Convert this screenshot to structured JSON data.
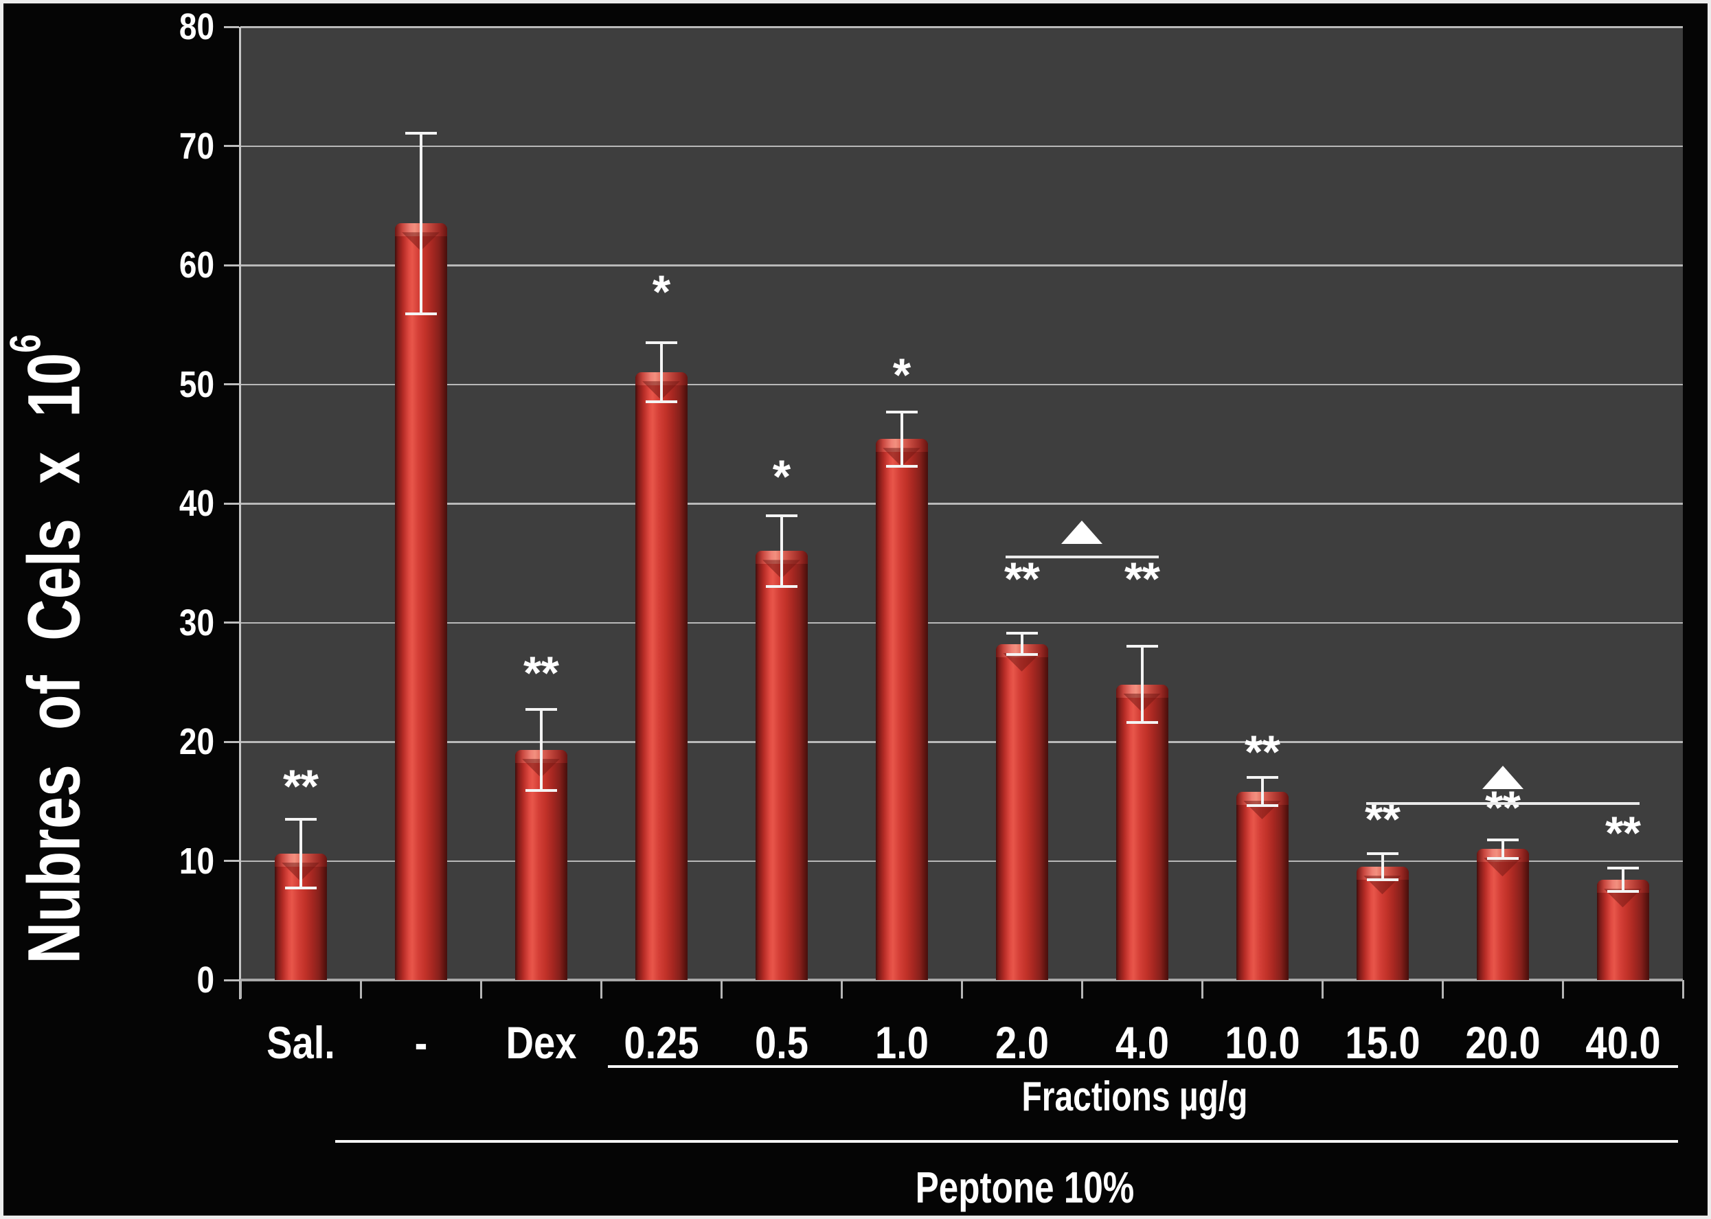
{
  "figure": {
    "background_color": "#050505",
    "plot_background_color": "#3e3e3e",
    "bar_color": "#c83028",
    "text_color": "#ffffff"
  },
  "y_axis": {
    "title_main": "Nubres of Cels x 10",
    "title_sup": "6",
    "ticks": [
      "0",
      "10",
      "20",
      "30",
      "40",
      "50",
      "60",
      "70",
      "80"
    ]
  },
  "annotations": {
    "fractions_label": "Fractions µg/g",
    "peptone_label": "Peptone 10%"
  },
  "chart_data": {
    "type": "bar",
    "title": "",
    "xlabel": "",
    "ylabel": "Nubres of Cels x 10^6",
    "ylim": [
      0,
      80
    ],
    "grid": true,
    "legend_position": "none",
    "categories": [
      "Sal.",
      "-",
      "Dex",
      "0.25",
      "0.5",
      "1.0",
      "2.0",
      "4.0",
      "10.0",
      "15.0",
      "20.0",
      "40.0"
    ],
    "series": [
      {
        "name": "Number of cells x10^6",
        "values": [
          10.6,
          63.5,
          19.3,
          51.0,
          36.0,
          45.4,
          28.2,
          24.8,
          15.8,
          9.5,
          11.0,
          8.4
        ],
        "errors": [
          3.0,
          7.7,
          3.5,
          2.6,
          3.1,
          2.4,
          1.0,
          3.3,
          1.3,
          1.2,
          0.9,
          1.1
        ]
      }
    ],
    "significance_markers": {
      "labels": [
        "**",
        "",
        "**",
        "*",
        "*",
        "*",
        "**",
        "**",
        "**",
        "**",
        "**",
        "**"
      ],
      "y_values": [
        15.8,
        null,
        25.3,
        57.3,
        41.8,
        50.3,
        33.2,
        33.2,
        18.7,
        13.0,
        14.0,
        11.9
      ]
    },
    "brackets": [
      {
        "from_index": 6,
        "to_index": 7,
        "line_y_value": 35.6,
        "triangle_base_y": 36.6,
        "symbol": "triangle"
      },
      {
        "from_index": 9,
        "to_index": 11,
        "line_y_value": 14.9,
        "triangle_base_y": 16.0,
        "symbol": "triangle"
      }
    ],
    "group_underlines": [
      {
        "label": "Fractions µg/g",
        "covers": [
          "0.25",
          "0.5",
          "1.0",
          "2.0",
          "4.0",
          "10.0",
          "15.0",
          "20.0",
          "40.0"
        ]
      },
      {
        "label": "Peptone 10%",
        "covers": [
          "-",
          "Dex",
          "0.25",
          "0.5",
          "1.0",
          "2.0",
          "4.0",
          "10.0",
          "15.0",
          "20.0",
          "40.0"
        ]
      }
    ]
  }
}
